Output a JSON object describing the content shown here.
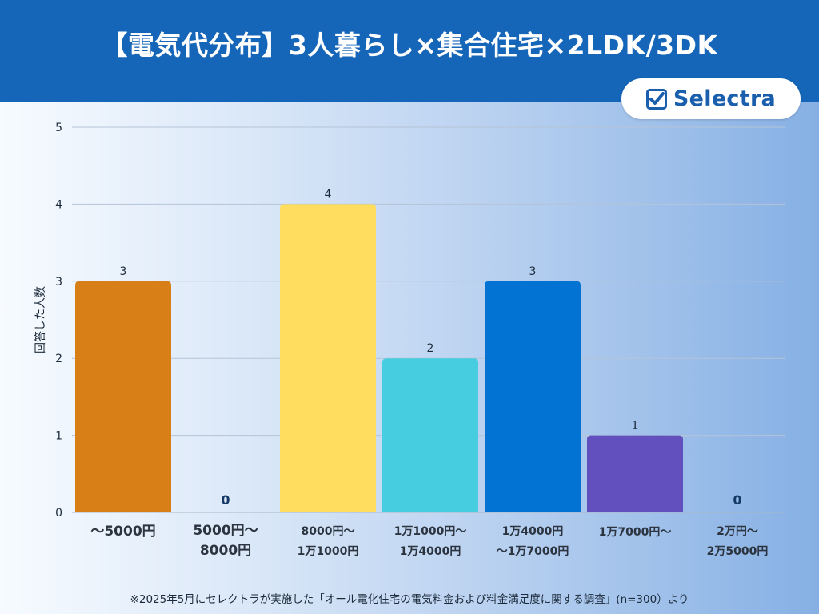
{
  "header": {
    "title": "【電気代分布】3人暮らし×集合住宅×2LDK/3DK"
  },
  "logo": {
    "text": "Selectra",
    "icon": "checkbox-icon"
  },
  "footnote": "※2025年5月にセレクトラが実施した「オール電化住宅の電気料金および料金満足度に関する調査」(n=300）より",
  "chart_data": {
    "type": "bar",
    "categories": [
      [
        "〜5000円"
      ],
      [
        "5000円〜",
        "8000円"
      ],
      [
        "8000円〜",
        "1万1000円"
      ],
      [
        "1万1000円〜",
        "1万4000円"
      ],
      [
        "1万4000円",
        "〜1万7000円"
      ],
      [
        "1万7000円〜"
      ],
      [
        "2万円〜",
        "2万5000円"
      ]
    ],
    "values": [
      3,
      0,
      4,
      2,
      3,
      1,
      0
    ],
    "value_labels": [
      "3",
      "0",
      "4",
      "2",
      "3",
      "1",
      "0"
    ],
    "colors": [
      "#d97f18",
      "#d97f18",
      "#ffdd5e",
      "#47cde0",
      "#0273d3",
      "#6150be",
      "#6150be"
    ],
    "ylabel": "回答した人数",
    "ylim": [
      0,
      5
    ],
    "yticks": [
      "0",
      "1",
      "2",
      "3",
      "4",
      "5"
    ],
    "grid": true
  }
}
